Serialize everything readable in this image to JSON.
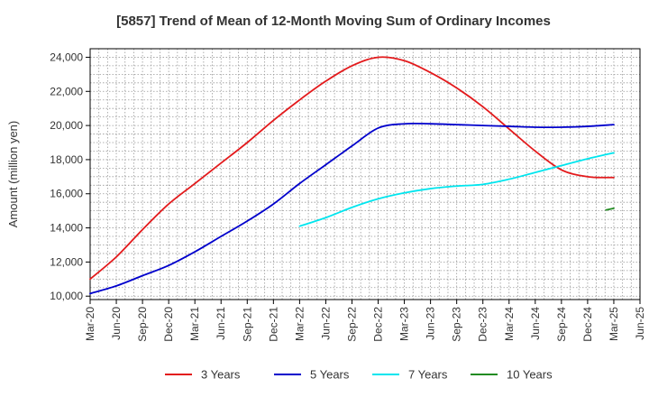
{
  "chart_data": {
    "type": "line",
    "title": "[5857]  Trend of Mean of 12-Month Moving Sum of Ordinary Incomes",
    "xlabel": "",
    "ylabel": "Amount (million yen)",
    "ylim": [
      9800,
      24500
    ],
    "yticks": [
      10000,
      12000,
      14000,
      16000,
      18000,
      20000,
      22000,
      24000
    ],
    "ytick_labels": [
      "10,000",
      "12,000",
      "14,000",
      "16,000",
      "18,000",
      "20,000",
      "22,000",
      "24,000"
    ],
    "x_tick_labels": [
      "Mar-20",
      "Jun-20",
      "Sep-20",
      "Dec-20",
      "Mar-21",
      "Jun-21",
      "Sep-21",
      "Dec-21",
      "Mar-22",
      "Jun-22",
      "Sep-22",
      "Dec-22",
      "Mar-23",
      "Jun-23",
      "Sep-23",
      "Dec-23",
      "Mar-24",
      "Jun-24",
      "Sep-24",
      "Dec-24",
      "Mar-25",
      "Jun-25"
    ],
    "x_range_quarters": [
      0,
      21
    ],
    "grid": true,
    "legend_position": "bottom",
    "series": [
      {
        "name": "3 Years",
        "color": "#e31a1c",
        "x": [
          0,
          1,
          2,
          3,
          4,
          5,
          6,
          7,
          8,
          9,
          10,
          11,
          12,
          13,
          14,
          15,
          16,
          17,
          18,
          19,
          20
        ],
        "values": [
          11000,
          12300,
          13900,
          15400,
          16600,
          17800,
          19000,
          20300,
          21500,
          22600,
          23500,
          24000,
          23800,
          23100,
          22200,
          21100,
          19800,
          18500,
          17400,
          17000,
          16950
        ]
      },
      {
        "name": "5 Years",
        "color": "#0000cc",
        "x": [
          0,
          1,
          2,
          3,
          4,
          5,
          6,
          7,
          8,
          9,
          10,
          11,
          12,
          13,
          14,
          15,
          16,
          17,
          18,
          19,
          20
        ],
        "values": [
          10150,
          10600,
          11200,
          11800,
          12600,
          13500,
          14400,
          15400,
          16600,
          17700,
          18800,
          19850,
          20100,
          20100,
          20050,
          20000,
          19950,
          19900,
          19900,
          19950,
          20050
        ]
      },
      {
        "name": "7 Years",
        "color": "#00e5ee",
        "x": [
          8,
          9,
          10,
          11,
          12,
          13,
          14,
          15,
          16,
          17,
          18,
          19,
          20
        ],
        "values": [
          14100,
          14600,
          15200,
          15700,
          16050,
          16300,
          16450,
          16550,
          16850,
          17250,
          17650,
          18050,
          18400
        ]
      },
      {
        "name": "10 Years",
        "color": "#228b22",
        "x": [
          19.7,
          20
        ],
        "values": [
          15050,
          15150
        ]
      }
    ]
  }
}
